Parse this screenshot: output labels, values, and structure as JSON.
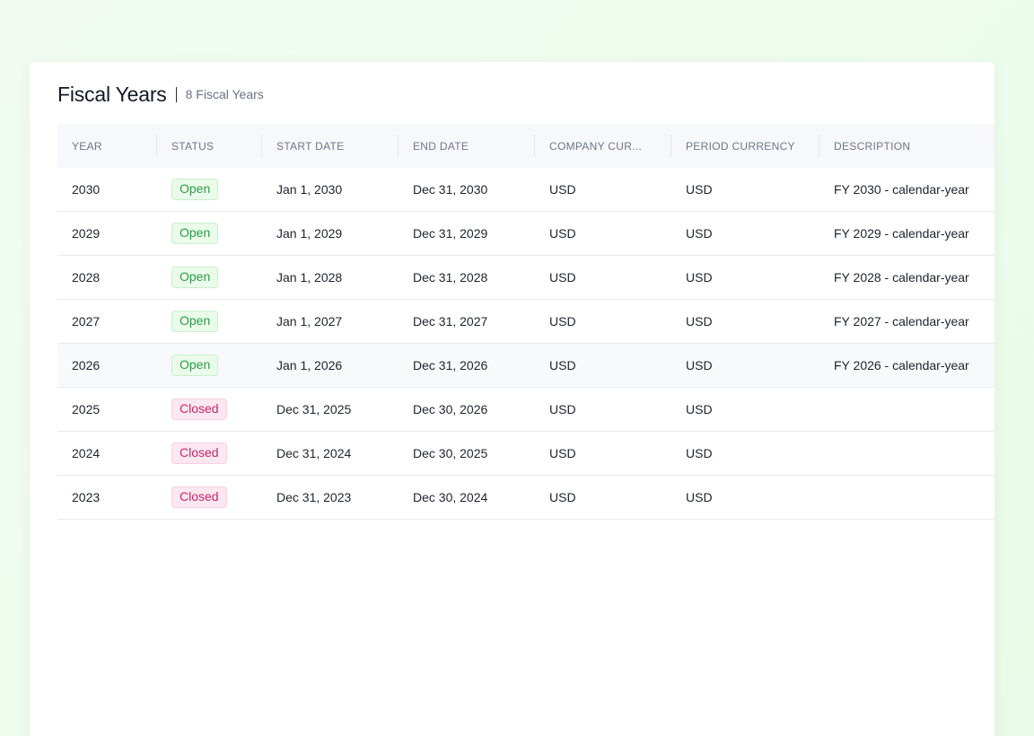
{
  "header": {
    "title": "Fiscal Years",
    "count": "8 Fiscal Years"
  },
  "columns": {
    "year": "YEAR",
    "status": "STATUS",
    "start": "START DATE",
    "end": "END DATE",
    "company_currency": "COMPANY CUR...",
    "period_currency": "PERIOD CURRENCY",
    "description": "DESCRIPTION"
  },
  "rows": [
    {
      "year": "2030",
      "status": "Open",
      "start": "Jan 1, 2030",
      "end": "Dec 31, 2030",
      "company_currency": "USD",
      "period_currency": "USD",
      "description": "FY 2030 - calendar-year"
    },
    {
      "year": "2029",
      "status": "Open",
      "start": "Jan 1, 2029",
      "end": "Dec 31, 2029",
      "company_currency": "USD",
      "period_currency": "USD",
      "description": "FY 2029 - calendar-year"
    },
    {
      "year": "2028",
      "status": "Open",
      "start": "Jan 1, 2028",
      "end": "Dec 31, 2028",
      "company_currency": "USD",
      "period_currency": "USD",
      "description": "FY 2028 - calendar-year"
    },
    {
      "year": "2027",
      "status": "Open",
      "start": "Jan 1, 2027",
      "end": "Dec 31, 2027",
      "company_currency": "USD",
      "period_currency": "USD",
      "description": "FY 2027 - calendar-year"
    },
    {
      "year": "2026",
      "status": "Open",
      "start": "Jan 1, 2026",
      "end": "Dec 31, 2026",
      "company_currency": "USD",
      "period_currency": "USD",
      "description": "FY 2026 - calendar-year"
    },
    {
      "year": "2025",
      "status": "Closed",
      "start": "Dec 31, 2025",
      "end": "Dec 30, 2026",
      "company_currency": "USD",
      "period_currency": "USD",
      "description": ""
    },
    {
      "year": "2024",
      "status": "Closed",
      "start": "Dec 31, 2024",
      "end": "Dec 30, 2025",
      "company_currency": "USD",
      "period_currency": "USD",
      "description": ""
    },
    {
      "year": "2023",
      "status": "Closed",
      "start": "Dec 31, 2023",
      "end": "Dec 30, 2024",
      "company_currency": "USD",
      "period_currency": "USD",
      "description": ""
    }
  ],
  "colors": {
    "open_text": "#2e9b4a",
    "open_bg": "#eafbea",
    "closed_text": "#c02a6c",
    "closed_bg": "#fde7f1"
  }
}
